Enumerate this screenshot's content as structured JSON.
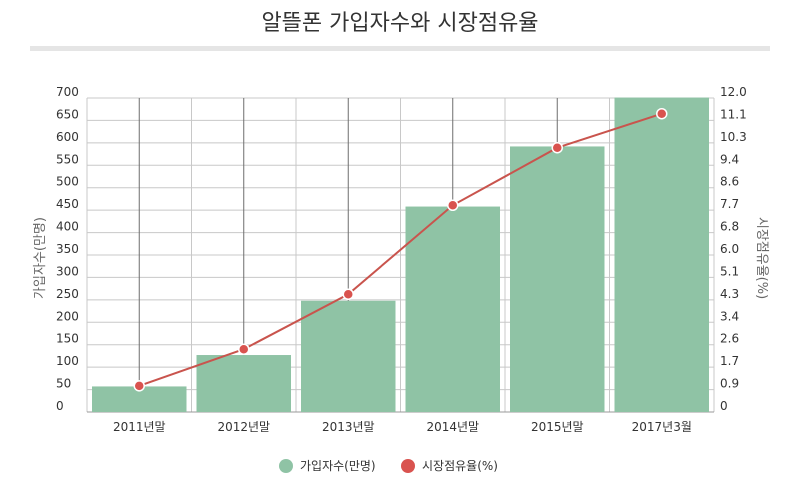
{
  "chart_data": {
    "type": "bar",
    "title": "알뜰폰 가입자수와 시장점유율",
    "categories": [
      "2011년말",
      "2012년말",
      "2013년말",
      "2014년말",
      "2015년말",
      "2017년3월"
    ],
    "series": [
      {
        "name": "가입자수(만명)",
        "type": "bar",
        "axis": "left",
        "values": [
          57,
          127,
          248,
          458,
          592,
          701
        ]
      },
      {
        "name": "시장점유율(%)",
        "type": "line",
        "axis": "right",
        "values": [
          1.0,
          2.4,
          4.5,
          7.9,
          10.1,
          11.4
        ]
      }
    ],
    "y_left": {
      "label": "가입자수(만명)",
      "range": [
        0,
        700
      ],
      "ticks": [
        "700",
        "650",
        "600",
        "550",
        "500",
        "450",
        "400",
        "350",
        "300",
        "250",
        "200",
        "150",
        "100",
        "50",
        "0"
      ]
    },
    "y_right": {
      "label": "시장점유율(%)",
      "range": [
        0,
        12.0
      ],
      "ticks": [
        "12.0",
        "11.1",
        "10.3",
        "9.4",
        "8.6",
        "7.7",
        "6.8",
        "6.0",
        "5.1",
        "4.3",
        "3.4",
        "2.6",
        "1.7",
        "0.9",
        "0"
      ]
    },
    "grid": true,
    "legend": "bottom-center",
    "colors": {
      "bar": "#8fc3a5",
      "line": "#c9544d",
      "marker": "#d9534f"
    }
  }
}
